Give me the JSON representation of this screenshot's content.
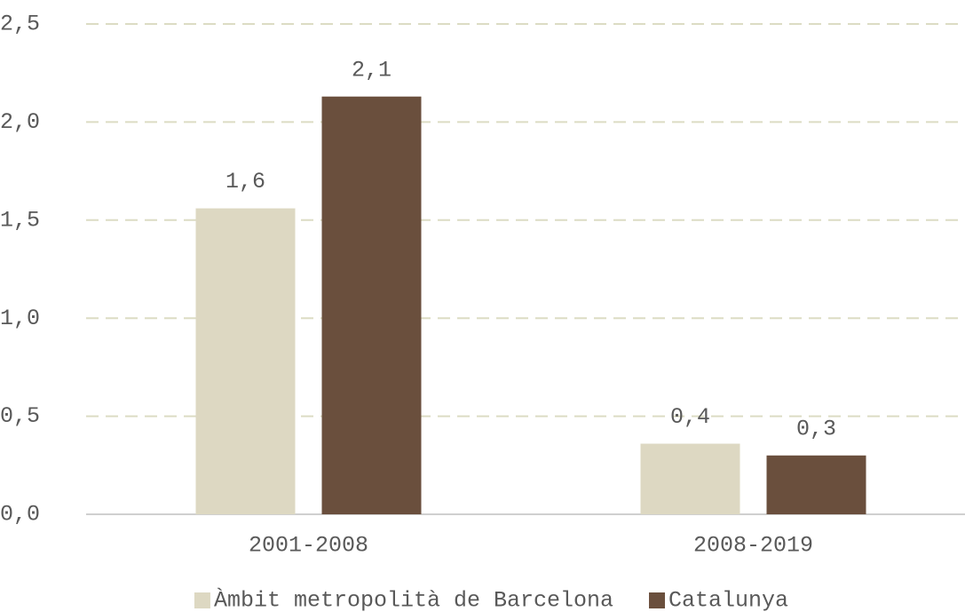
{
  "chart_data": {
    "type": "bar",
    "categories": [
      "2001-2008",
      "2008-2019"
    ],
    "series": [
      {
        "name": "Àmbit metropolità de Barcelona",
        "color": "#ddd8c2",
        "values": [
          1.56,
          0.36
        ],
        "value_labels": [
          "1,6",
          "0,4"
        ]
      },
      {
        "name": "Catalunya",
        "color": "#6a4f3d",
        "values": [
          2.13,
          0.3
        ],
        "value_labels": [
          "2,1",
          "0,3"
        ]
      }
    ],
    "ylim": [
      0,
      2.5
    ],
    "yticks": [
      {
        "value": 0,
        "label": "0,0"
      },
      {
        "value": 0.5,
        "label": "0,5"
      },
      {
        "value": 1,
        "label": "1,0"
      },
      {
        "value": 1.5,
        "label": "1,5"
      },
      {
        "value": 2,
        "label": "2,0"
      },
      {
        "value": 2.5,
        "label": "2,5"
      }
    ],
    "grid": true,
    "legend": "bottom"
  }
}
